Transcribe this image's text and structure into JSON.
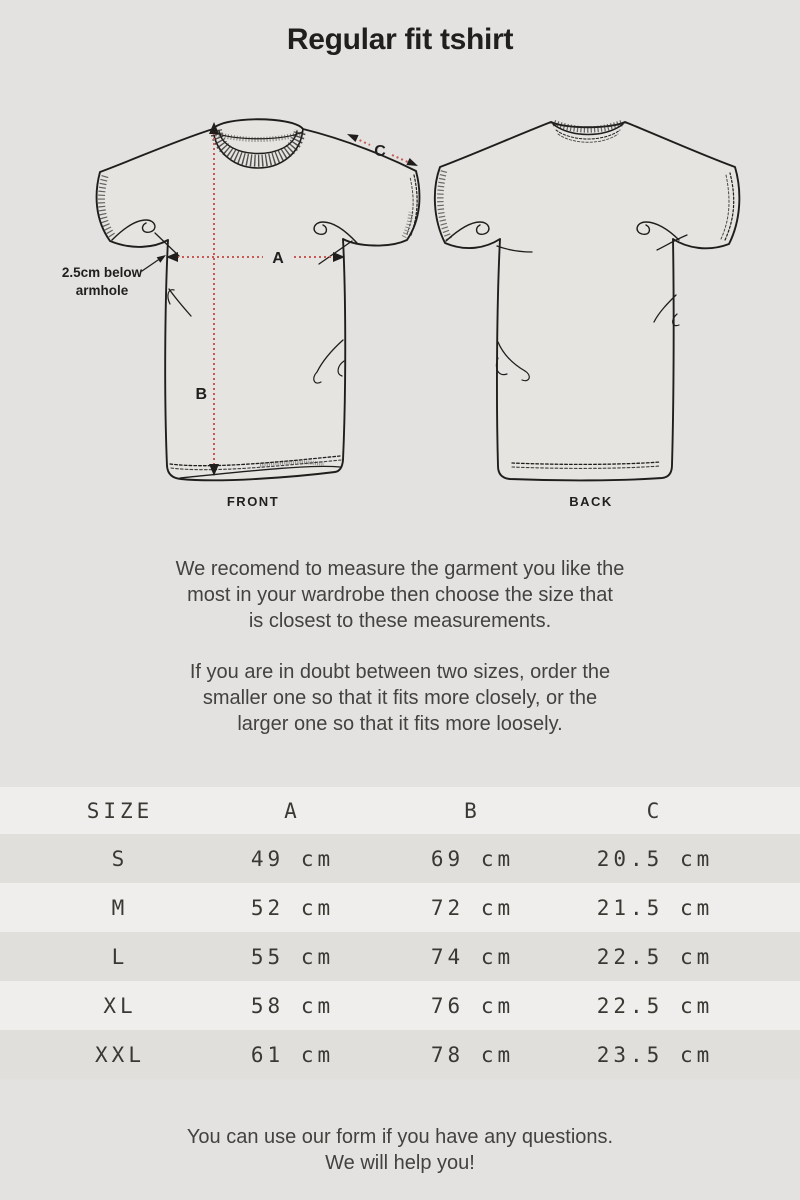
{
  "title": "Regular fit tshirt",
  "diagram": {
    "front_label": "FRONT",
    "back_label": "BACK",
    "note_line1": "2.5cm below",
    "note_line2": "armhole",
    "measure_a": "A",
    "measure_b": "B",
    "measure_c": "C",
    "accent_color": "#c75a54"
  },
  "intro": {
    "p1_lines": [
      "We recomend to measure the garment you like the",
      "most in your wardrobe then choose the size that",
      "is closest to these measurements."
    ],
    "p2_lines": [
      "If you are in doubt between two sizes, order the",
      "smaller one so that it fits more closely, or the",
      "larger one so that it fits more loosely."
    ]
  },
  "size_table": {
    "headers": [
      "SIZE",
      "A",
      "B",
      "C"
    ],
    "rows": [
      {
        "size": "S",
        "a": "49 cm",
        "b": "69 cm",
        "c": "20.5 cm"
      },
      {
        "size": "M",
        "a": "52 cm",
        "b": "72 cm",
        "c": "21.5 cm"
      },
      {
        "size": "L",
        "a": "55 cm",
        "b": "74 cm",
        "c": "22.5 cm"
      },
      {
        "size": "XL",
        "a": "58 cm",
        "b": "76 cm",
        "c": "22.5 cm"
      },
      {
        "size": "XXL",
        "a": "61 cm",
        "b": "78 cm",
        "c": "23.5 cm"
      }
    ]
  },
  "footer": {
    "line1": "You can use our form if you have any questions.",
    "line2": "We will help you!"
  }
}
